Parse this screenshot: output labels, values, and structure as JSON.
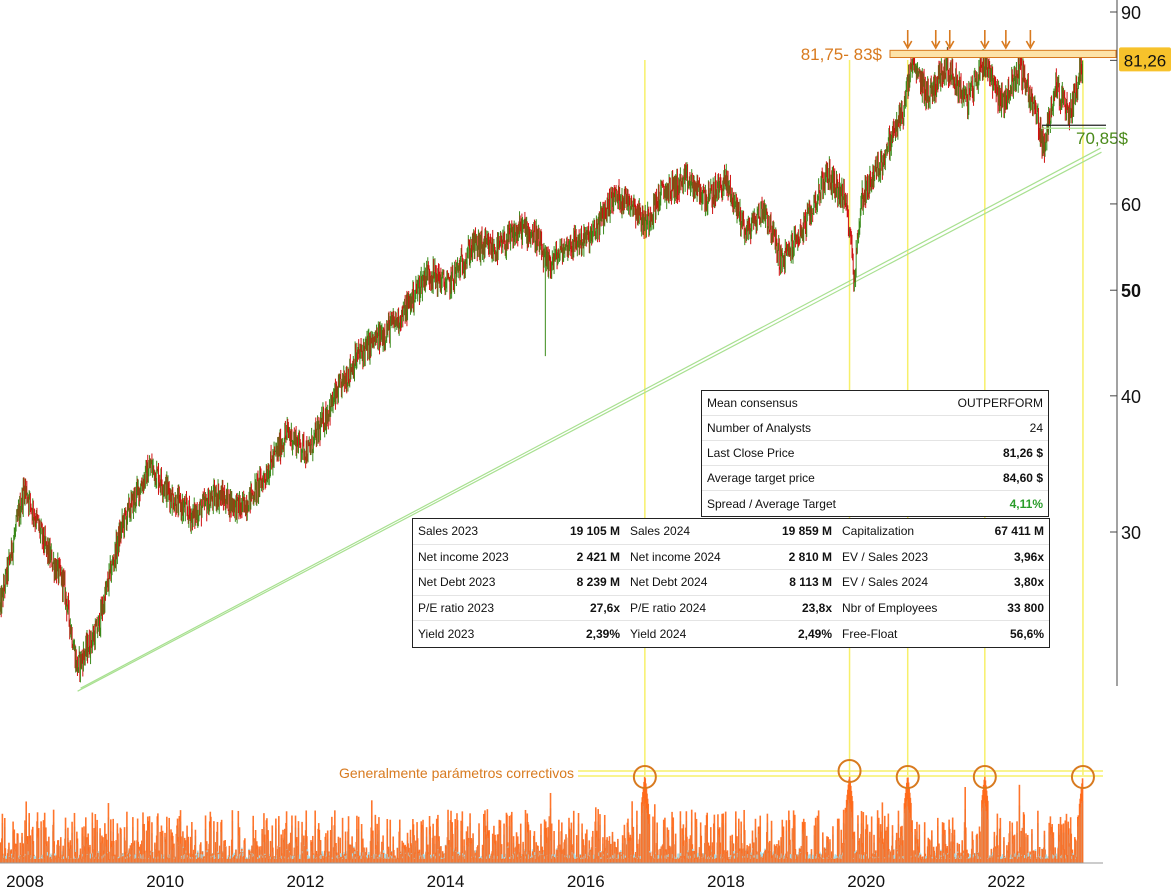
{
  "chart_data": {
    "type": "candlestick",
    "title": "",
    "y_scale": "log",
    "ylim": [
      23,
      90
    ],
    "y_ticks": [
      {
        "value": 90,
        "label": "90",
        "bold": false
      },
      {
        "value": 81.26,
        "label": "81,26",
        "highlight": true
      },
      {
        "value": 60,
        "label": "60",
        "bold": false
      },
      {
        "value": 50,
        "label": "50",
        "bold": true
      },
      {
        "value": 40,
        "label": "40",
        "bold": false
      },
      {
        "value": 30,
        "label": "30",
        "bold": false
      }
    ],
    "x_range": [
      2008.0,
      2023.95
    ],
    "x_ticks": [
      "2008",
      "2010",
      "2012",
      "2014",
      "2016",
      "2018",
      "2020",
      "2022"
    ],
    "price_path": [
      [
        2008.0,
        25.5
      ],
      [
        2008.15,
        28.5
      ],
      [
        2008.35,
        33.0
      ],
      [
        2008.65,
        29.0
      ],
      [
        2008.9,
        27.0
      ],
      [
        2009.1,
        22.5
      ],
      [
        2009.4,
        24.5
      ],
      [
        2009.75,
        30.5
      ],
      [
        2010.15,
        34.5
      ],
      [
        2010.5,
        32.0
      ],
      [
        2010.75,
        31.0
      ],
      [
        2011.1,
        32.5
      ],
      [
        2011.45,
        31.5
      ],
      [
        2011.75,
        33.5
      ],
      [
        2012.1,
        37.0
      ],
      [
        2012.4,
        35.5
      ],
      [
        2012.75,
        39.5
      ],
      [
        2013.1,
        43.5
      ],
      [
        2013.45,
        45.5
      ],
      [
        2013.75,
        47.5
      ],
      [
        2014.1,
        52.0
      ],
      [
        2014.4,
        50.5
      ],
      [
        2014.75,
        55.0
      ],
      [
        2015.1,
        54.5
      ],
      [
        2015.45,
        57.0
      ],
      [
        2015.65,
        56.0
      ],
      [
        2015.8,
        52.5
      ],
      [
        2016.1,
        55.0
      ],
      [
        2016.45,
        56.0
      ],
      [
        2016.75,
        61.0
      ],
      [
        2017.0,
        60.5
      ],
      [
        2017.2,
        57.5
      ],
      [
        2017.45,
        61.5
      ],
      [
        2017.8,
        63.0
      ],
      [
        2018.1,
        60.5
      ],
      [
        2018.35,
        63.0
      ],
      [
        2018.65,
        56.5
      ],
      [
        2018.9,
        59.5
      ],
      [
        2019.15,
        53.0
      ],
      [
        2019.5,
        57.5
      ],
      [
        2019.8,
        64.0
      ],
      [
        2020.05,
        60.5
      ],
      [
        2020.13,
        57.0
      ],
      [
        2020.18,
        51.0
      ],
      [
        2020.3,
        61.0
      ],
      [
        2020.6,
        66.0
      ],
      [
        2020.9,
        73.5
      ],
      [
        2021.0,
        80.5
      ],
      [
        2021.25,
        75.5
      ],
      [
        2021.5,
        80.5
      ],
      [
        2021.8,
        74.5
      ],
      [
        2022.05,
        81.5
      ],
      [
        2022.3,
        74.0
      ],
      [
        2022.55,
        80.0
      ],
      [
        2022.8,
        72.0
      ],
      [
        2022.9,
        67.0
      ],
      [
        2023.05,
        77.5
      ],
      [
        2023.25,
        72.0
      ],
      [
        2023.45,
        81.26
      ]
    ],
    "resistance_band": [
      81.75,
      83
    ],
    "resistance_label": "81,75- 83$",
    "support_level": 70.85,
    "support_label": "70,85$",
    "trendline": [
      [
        2009.15,
        22.5
      ],
      [
        2023.7,
        67.5
      ]
    ],
    "arrow_markers_x": [
      2020.95,
      2021.35,
      2021.55,
      2022.05,
      2022.35,
      2022.7
    ],
    "vertical_markers_x": [
      2017.2,
      2020.12,
      2020.95,
      2022.05,
      2023.45
    ],
    "volume_indicator": {
      "threshold_label": "Generalmente parámetros correctivos",
      "circle_markers_x": [
        2017.2,
        2020.12,
        2020.95,
        2022.05,
        2023.45
      ]
    },
    "colors": {
      "up": "#3a8a1a",
      "down": "#d01010",
      "volume": "#ff6a1a",
      "volume_shadow": "#a8dce8",
      "annotation": "#d87a1f",
      "support": "#4a8a1a",
      "trend": "#a8e090",
      "marker": "#f7f06a"
    }
  },
  "consensus_table": [
    {
      "label": "Mean consensus",
      "value": "OUTPERFORM",
      "style": "normal"
    },
    {
      "label": "Number of Analysts",
      "value": "24",
      "style": "normal"
    },
    {
      "label": "Last Close Price",
      "value": "81,26 $",
      "style": "bold"
    },
    {
      "label": "Average target price",
      "value": "84,60 $",
      "style": "bold"
    },
    {
      "label": "Spread / Average Target",
      "value": "4,11%",
      "style": "green"
    }
  ],
  "financials_table": {
    "columns": [
      [
        {
          "label": "Sales 2023",
          "value": "19 105 M"
        },
        {
          "label": "Net income 2023",
          "value": "2 421 M"
        },
        {
          "label": "Net Debt 2023",
          "value": "8 239 M"
        },
        {
          "label": "P/E ratio 2023",
          "value": "27,6x"
        },
        {
          "label": "Yield 2023",
          "value": "2,39%"
        }
      ],
      [
        {
          "label": "Sales 2024",
          "value": "19 859 M"
        },
        {
          "label": "Net income 2024",
          "value": "2 810 M"
        },
        {
          "label": "Net Debt 2024",
          "value": "8 113 M"
        },
        {
          "label": "P/E ratio 2024",
          "value": "23,8x"
        },
        {
          "label": "Yield 2024",
          "value": "2,49%"
        }
      ],
      [
        {
          "label": "Capitalization",
          "value": "67 411 M"
        },
        {
          "label": "EV / Sales 2023",
          "value": "3,96x"
        },
        {
          "label": "EV / Sales 2024",
          "value": "3,80x"
        },
        {
          "label": "Nbr of Employees",
          "value": "33 800"
        },
        {
          "label": "Free-Float",
          "value": "56,6%"
        }
      ]
    ]
  }
}
